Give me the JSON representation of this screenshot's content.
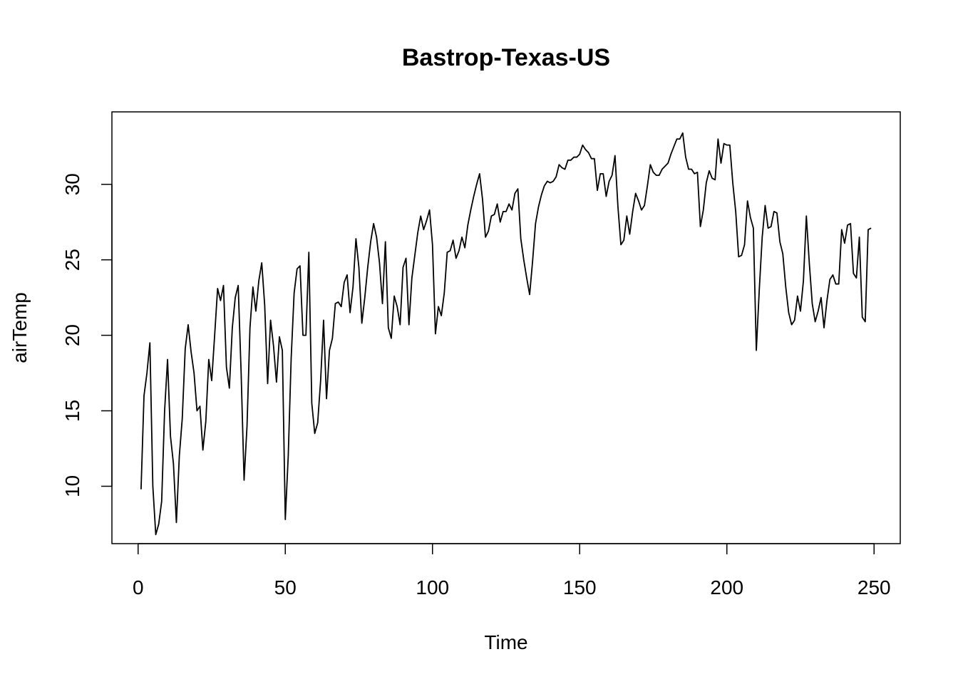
{
  "chart_data": {
    "type": "line",
    "title": "Bastrop-Texas-US",
    "xlabel": "Time",
    "ylabel": "airTemp",
    "xlim": [
      -8.9,
      258.9
    ],
    "ylim": [
      6.2,
      34.8
    ],
    "x_ticks": [
      0,
      50,
      100,
      150,
      200,
      250
    ],
    "y_ticks": [
      10,
      15,
      20,
      25,
      30
    ],
    "grid": false,
    "line_color": "#000000",
    "series": [
      {
        "x_start": 1,
        "values": [
          9.8,
          16.0,
          17.5,
          19.5,
          10.0,
          6.8,
          7.5,
          9.0,
          15.0,
          18.4,
          13.3,
          11.5,
          7.6,
          12.0,
          14.5,
          19.1,
          20.7,
          18.9,
          17.5,
          15.0,
          15.3,
          12.4,
          14.3,
          18.4,
          17.0,
          20.0,
          23.1,
          22.3,
          23.3,
          17.9,
          16.5,
          20.5,
          22.5,
          23.3,
          17.5,
          10.4,
          14.0,
          20.5,
          23.2,
          21.6,
          23.6,
          24.8,
          22.0,
          16.8,
          21.0,
          19.3,
          16.9,
          19.9,
          19.0,
          7.8,
          12.0,
          18.5,
          22.8,
          24.4,
          24.6,
          20.0,
          20.0,
          25.5,
          15.5,
          13.5,
          14.2,
          17.0,
          21.0,
          15.8,
          19.0,
          19.8,
          22.1,
          22.2,
          21.9,
          23.5,
          24.0,
          21.5,
          23.2,
          26.4,
          24.5,
          20.8,
          22.5,
          24.5,
          26.2,
          27.4,
          26.5,
          24.8,
          22.1,
          26.2,
          20.5,
          19.8,
          22.6,
          21.9,
          20.7,
          24.5,
          25.1,
          20.7,
          23.8,
          25.3,
          26.8,
          27.9,
          27.0,
          27.6,
          28.3,
          26.0,
          20.1,
          21.9,
          21.3,
          22.8,
          25.5,
          25.6,
          26.3,
          25.1,
          25.6,
          26.5,
          25.8,
          27.3,
          28.3,
          29.2,
          30.0,
          30.7,
          29.0,
          26.5,
          26.9,
          27.9,
          28.0,
          28.7,
          27.5,
          28.2,
          28.2,
          28.7,
          28.3,
          29.4,
          29.7,
          26.4,
          25.0,
          23.8,
          22.7,
          24.9,
          27.4,
          28.5,
          29.3,
          29.9,
          30.2,
          30.1,
          30.2,
          30.5,
          31.3,
          31.1,
          31.0,
          31.6,
          31.6,
          31.8,
          31.8,
          32.0,
          32.6,
          32.3,
          32.1,
          31.7,
          31.7,
          29.6,
          30.7,
          30.7,
          29.2,
          30.2,
          30.6,
          31.9,
          28.5,
          26.0,
          26.3,
          27.9,
          26.7,
          28.2,
          29.4,
          28.9,
          28.3,
          28.6,
          29.9,
          31.3,
          30.8,
          30.6,
          30.6,
          31.0,
          31.2,
          31.4,
          32.0,
          32.5,
          33.0,
          33.0,
          33.4,
          31.8,
          31.0,
          31.0,
          30.7,
          30.8,
          27.2,
          28.3,
          30.1,
          30.9,
          30.4,
          30.3,
          33.0,
          31.4,
          32.7,
          32.6,
          32.6,
          30.1,
          28.2,
          25.2,
          25.3,
          26.0,
          28.9,
          27.8,
          27.1,
          19.0,
          23.0,
          26.5,
          28.6,
          27.1,
          27.2,
          28.2,
          28.1,
          26.2,
          25.4,
          23.2,
          21.5,
          20.7,
          21.0,
          22.6,
          21.6,
          23.6,
          27.9,
          24.8,
          22.1,
          20.9,
          21.6,
          22.5,
          20.5,
          22.3,
          23.7,
          24.0,
          23.4,
          23.4,
          27.0,
          26.1,
          27.3,
          27.4,
          24.1,
          23.8,
          26.5,
          21.2,
          20.9,
          27.0,
          27.1
        ]
      }
    ]
  }
}
